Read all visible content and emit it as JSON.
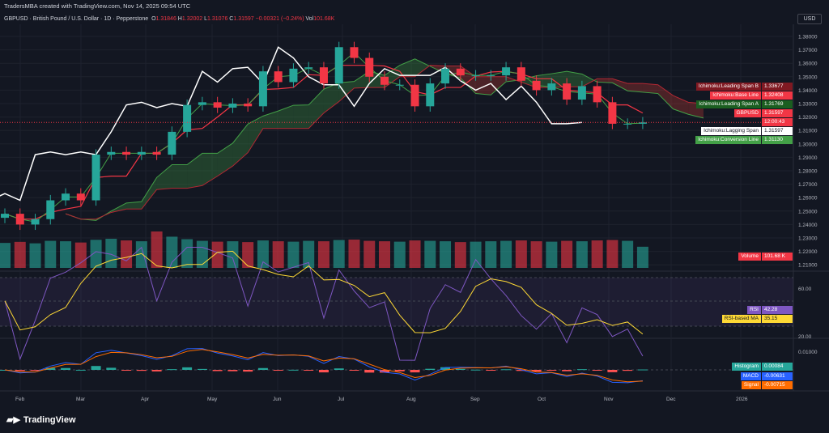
{
  "header": {
    "caption": "TradersMBA created with TradingView.com, Nov 14, 2025 09:54 UTC",
    "currency": "USD"
  },
  "legend": {
    "symbol": "GBPUSD · British Pound / U.S. Dollar · 1D · Pepperstone",
    "o_label": "O",
    "o": "1.31846",
    "h_label": "H",
    "h": "1.32002",
    "l_label": "L",
    "l": "1.31076",
    "c_label": "C",
    "c": "1.31597",
    "change": "−0.00321 (−0.24%)",
    "vol_label": "Vol",
    "vol": "101.68K"
  },
  "price_axis": [
    "1.38000",
    "1.37000",
    "1.36000",
    "1.35000",
    "1.34000",
    "1.33000",
    "1.32000",
    "1.31000",
    "1.30000",
    "1.29000",
    "1.28000",
    "1.27000",
    "1.26000",
    "1.25000",
    "1.24000",
    "1.23000",
    "1.22000",
    "1.21000"
  ],
  "rsi_axis": [
    "60.00",
    "20.00"
  ],
  "macd_axis": [
    "0.01000"
  ],
  "time_axis": [
    "Feb",
    "Mar",
    "Apr",
    "May",
    "Jun",
    "Jul",
    "Aug",
    "Sep",
    "Oct",
    "Nov",
    "Dec",
    "2026"
  ],
  "tags": [
    {
      "name": "Ichimoku:Leading Span B",
      "value": "1.33677",
      "color": "#801922"
    },
    {
      "name": "Ichimoku:Base Line",
      "value": "1.32408",
      "color": "#f23645"
    },
    {
      "name": "Ichimoku:Leading Span A",
      "value": "1.31769",
      "color": "#1b5e20"
    },
    {
      "name": "GBPUSD",
      "value": "1.31597",
      "extra": "12:00:43",
      "color": "#f23645"
    },
    {
      "name": "Ichimoku:Lagging Span",
      "value": "1.31597",
      "color": "#ffffff"
    },
    {
      "name": "Ichimoku:Conversion Line",
      "value": "1.31130",
      "color": "#43a047"
    },
    {
      "name": "Volume",
      "value": "101.68 K",
      "color": "#f23645"
    },
    {
      "name": "RSI",
      "value": "42.28",
      "color": "#7e57c2"
    },
    {
      "name": "RSI-based MA",
      "value": "35.15",
      "color": "#fdd835"
    },
    {
      "name": "Histogram",
      "value": "0.00084",
      "color": "#26a69a"
    },
    {
      "name": "MACD",
      "value": "-0.00631",
      "color": "#2962ff"
    },
    {
      "name": "Signal",
      "value": "-0.00715",
      "color": "#ff6d00"
    }
  ],
  "footer": {
    "brand": "TradingView"
  },
  "chart_data": {
    "type": "candlestick",
    "interval": "weekly-sampled from 1D",
    "start": "2025-01-24",
    "end": "2025-11-14",
    "closes": [
      1.248,
      1.24,
      1.244,
      1.258,
      1.263,
      1.258,
      1.292,
      1.294,
      1.292,
      1.294,
      1.292,
      1.309,
      1.329,
      1.331,
      1.327,
      1.33,
      1.328,
      1.354,
      1.346,
      1.356,
      1.357,
      1.345,
      1.372,
      1.364,
      1.35,
      1.344,
      1.344,
      1.328,
      1.345,
      1.356,
      1.351,
      1.351,
      1.351,
      1.357,
      1.347,
      1.34,
      1.345,
      1.333,
      1.343,
      1.331,
      1.315,
      1.315,
      1.316
    ],
    "volume_k": [
      120,
      125,
      118,
      130,
      128,
      122,
      135,
      140,
      132,
      128,
      175,
      150,
      138,
      130,
      126,
      128,
      124,
      132,
      128,
      126,
      130,
      128,
      134,
      136,
      130,
      128,
      126,
      132,
      130,
      128,
      124,
      126,
      128,
      130,
      132,
      128,
      126,
      130,
      128,
      132,
      134,
      130,
      101.68
    ],
    "ylim": [
      1.21,
      1.385
    ],
    "colors": {
      "up": "#26a69a",
      "down": "#f23645"
    }
  }
}
